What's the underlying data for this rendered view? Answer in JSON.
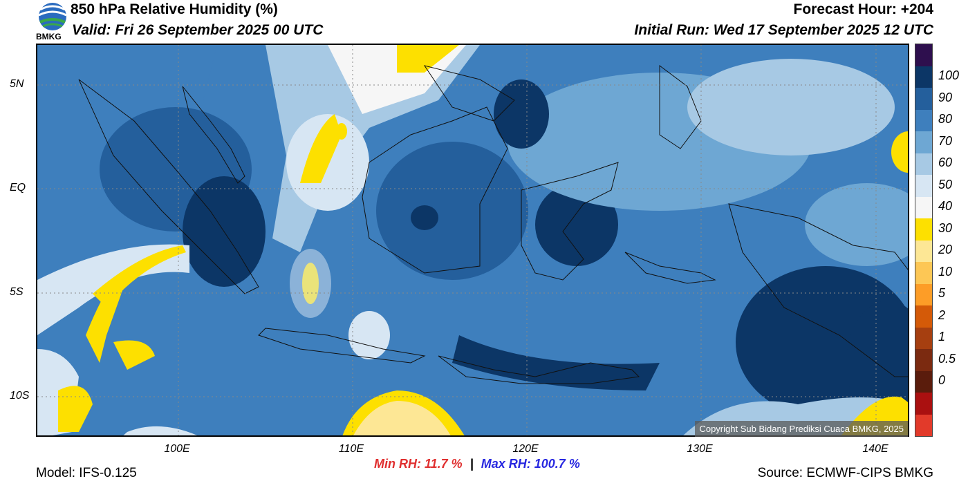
{
  "header": {
    "title": "850 hPa Relative Humidity (%)",
    "valid": "Valid: Fri 26 September 2025 00 UTC",
    "forecast_hour": "Forecast Hour: +204",
    "initial_run": "Initial Run: Wed 17 September 2025 12 UTC"
  },
  "logo": {
    "text": "BMKG"
  },
  "axes": {
    "lat_ticks": [
      {
        "label": "5N"
      },
      {
        "label": "EQ"
      },
      {
        "label": "5S"
      },
      {
        "label": "10S"
      }
    ],
    "lon_ticks": [
      {
        "label": "100E"
      },
      {
        "label": "110E"
      },
      {
        "label": "120E"
      },
      {
        "label": "130E"
      },
      {
        "label": "140E"
      }
    ]
  },
  "colorbar": {
    "levels": [
      "100",
      "90",
      "80",
      "70",
      "60",
      "50",
      "40",
      "30",
      "20",
      "10",
      "5",
      "2",
      "1",
      "0.5",
      "0"
    ],
    "colors": [
      "#2e0f4e",
      "#0c3666",
      "#245f9c",
      "#3e7fbd",
      "#6ea7d3",
      "#a7c9e4",
      "#d7e6f3",
      "#f6f6f6",
      "#fde000",
      "#fde795",
      "#fdc755",
      "#fd9d27",
      "#d45a08",
      "#a63f10",
      "#7b2a10",
      "#5a1c0c",
      "#aa1010",
      "#e23a2a"
    ]
  },
  "copyright": "Copyright Sub Bidang Prediksi Cuaca BMKG, 2025",
  "stats": {
    "min": "Min RH:  11.7 %",
    "separator": "|",
    "max": "Max RH: 100.7 %"
  },
  "footer": {
    "model": "Model: IFS-0.125",
    "source": "Source: ECMWF-CIPS BMKG"
  }
}
